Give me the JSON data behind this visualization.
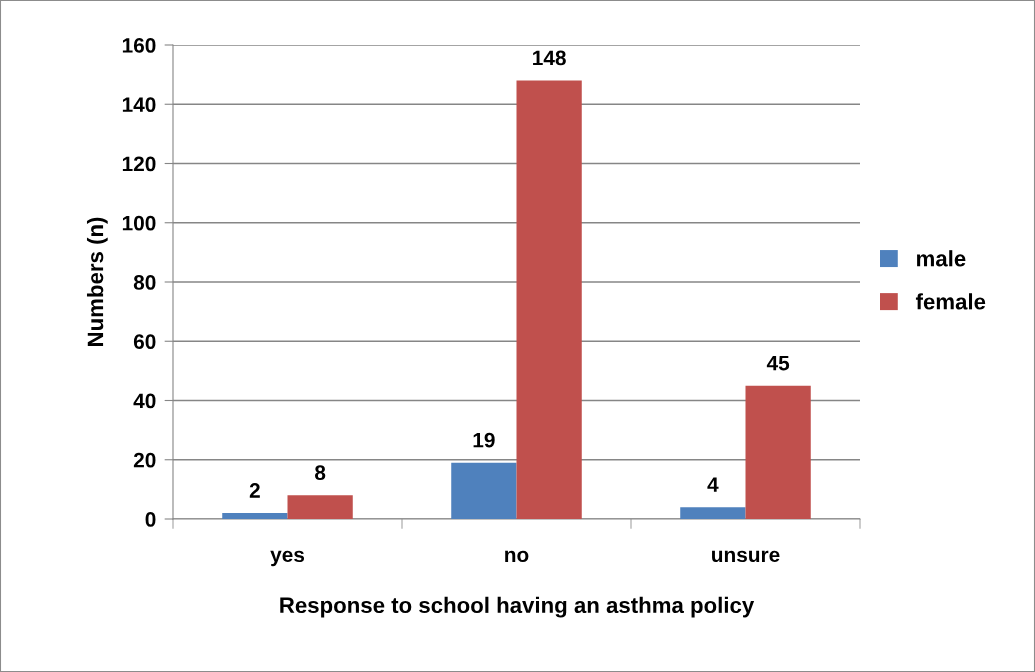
{
  "chart_data": {
    "type": "bar",
    "xlabel": "Response to school having an asthma policy",
    "ylabel": "Numbers (n)",
    "categories": [
      "yes",
      "no",
      "unsure"
    ],
    "series": [
      {
        "name": "male",
        "color": "#4f81bd",
        "values": [
          2,
          19,
          4
        ]
      },
      {
        "name": "female",
        "color": "#c0504d",
        "values": [
          8,
          148,
          45
        ]
      }
    ],
    "ylim": [
      0,
      160
    ],
    "yticks": [
      0,
      20,
      40,
      60,
      80,
      100,
      120,
      140,
      160
    ],
    "grid": "y",
    "legend": "right",
    "data_labels": true
  }
}
